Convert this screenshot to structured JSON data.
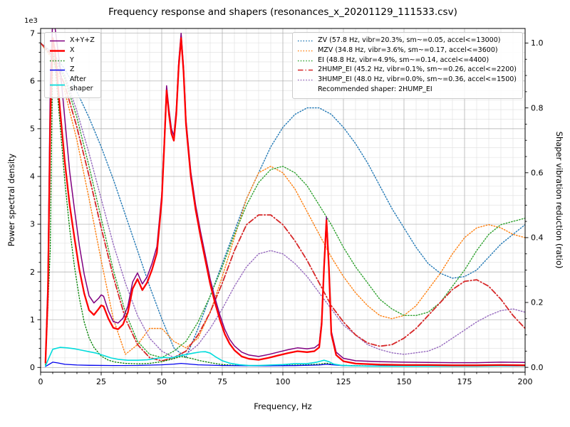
{
  "figure": {
    "title": "Frequency response and shapers (resonances_x_20201129_111533.csv)"
  },
  "chart_data": {
    "type": "line",
    "title": "Frequency response and shapers (resonances_x_20201129_111533.csv)",
    "xlabel": "Frequency, Hz",
    "ylabel_left": "Power spectral density",
    "ylabel_right": "Shaper vibration reduction (ratio)",
    "y_left_offset_label": "1e3",
    "recommended_shaper": "2HUMP_EI",
    "xlim": [
      0,
      200
    ],
    "ylim_left": [
      -100,
      7100
    ],
    "ylim_right": [
      -0.015,
      1.045
    ],
    "x_major_step": 25,
    "x_minor_step": 5,
    "y_left_major_step": 1000,
    "y_left_minor_step": 200,
    "grid": true,
    "x_ticks": [
      0,
      25,
      50,
      75,
      100,
      125,
      150,
      175,
      200
    ],
    "x_tick_labels": [
      "0",
      "25",
      "50",
      "75",
      "100",
      "125",
      "150",
      "175",
      "200"
    ],
    "y_left_ticks": [
      0,
      1000,
      2000,
      3000,
      4000,
      5000,
      6000,
      7000
    ],
    "y_left_tick_labels": [
      "0",
      "1",
      "2",
      "3",
      "4",
      "5",
      "6",
      "7"
    ],
    "y_right_ticks": [
      0,
      0.2,
      0.4,
      0.6,
      0.8,
      1.0
    ],
    "y_right_tick_labels": [
      "0.0",
      "0.2",
      "0.4",
      "0.6",
      "0.8",
      "1.0"
    ],
    "legend_left": {
      "entries": [
        {
          "label": "X+Y+Z",
          "color": "#800080",
          "style": "solid",
          "width": 1.6
        },
        {
          "label": "X",
          "color": "#ff0000",
          "style": "solid",
          "width": 2.4
        },
        {
          "label": "Y",
          "color": "#008000",
          "style": "dotted",
          "width": 1.5
        },
        {
          "label": "Z",
          "color": "#0000ee",
          "style": "solid",
          "width": 1.5
        },
        {
          "label": "After\nshaper",
          "color": "#00dcdc",
          "style": "solid",
          "width": 1.7
        }
      ]
    },
    "legend_right": {
      "entries": [
        {
          "label": "ZV (57.8 Hz, vibr=20.3%, sm~=0.05, accel<=13000)",
          "color": "#1f77b4",
          "style": "dotted",
          "width": 1.5
        },
        {
          "label": "MZV (34.8 Hz, vibr=3.6%, sm~=0.17, accel<=3600)",
          "color": "#ff7f0e",
          "style": "dotted",
          "width": 1.5
        },
        {
          "label": "EI (48.8 Hz, vibr=4.9%, sm~=0.14, accel<=4400)",
          "color": "#2ca02c",
          "style": "dotted",
          "width": 1.5
        },
        {
          "label": "2HUMP_EI (45.2 Hz, vibr=0.1%, sm~=0.26, accel<=2200)",
          "color": "#d62728",
          "style": "dashdot",
          "width": 1.6
        },
        {
          "label": "3HUMP_EI (48.0 Hz, vibr=0.0%, sm~=0.36, accel<=1500)",
          "color": "#9467bd",
          "style": "dotted",
          "width": 1.5
        }
      ],
      "note": "Recommended shaper: 2HUMP_EI"
    },
    "series": [
      {
        "name": "ZV",
        "axis": "right",
        "color": "#1f77b4",
        "style": "dotted",
        "width": 1.4,
        "x": [
          0,
          5,
          10,
          15,
          20,
          25,
          30,
          35,
          40,
          45,
          50,
          55,
          60,
          65,
          70,
          75,
          80,
          85,
          90,
          95,
          100,
          105,
          110,
          115,
          120,
          125,
          130,
          135,
          140,
          145,
          150,
          155,
          160,
          165,
          170,
          175,
          180,
          185,
          190,
          195,
          200
        ],
        "y": [
          1.0,
          0.97,
          0.92,
          0.85,
          0.77,
          0.68,
          0.58,
          0.47,
          0.36,
          0.25,
          0.15,
          0.06,
          0.03,
          0.12,
          0.22,
          0.32,
          0.42,
          0.52,
          0.6,
          0.68,
          0.74,
          0.78,
          0.8,
          0.8,
          0.78,
          0.74,
          0.69,
          0.63,
          0.56,
          0.49,
          0.43,
          0.37,
          0.32,
          0.29,
          0.275,
          0.28,
          0.3,
          0.34,
          0.38,
          0.41,
          0.44
        ]
      },
      {
        "name": "MZV",
        "axis": "right",
        "color": "#ff7f0e",
        "style": "dotted",
        "width": 1.4,
        "x": [
          0,
          5,
          10,
          15,
          20,
          25,
          30,
          35,
          40,
          45,
          50,
          55,
          60,
          65,
          70,
          75,
          80,
          85,
          90,
          95,
          100,
          105,
          110,
          115,
          120,
          125,
          130,
          135,
          140,
          145,
          150,
          155,
          160,
          165,
          170,
          175,
          180,
          185,
          190,
          195,
          200
        ],
        "y": [
          1.0,
          0.95,
          0.85,
          0.7,
          0.52,
          0.33,
          0.15,
          0.04,
          0.07,
          0.12,
          0.12,
          0.08,
          0.06,
          0.09,
          0.17,
          0.28,
          0.4,
          0.52,
          0.6,
          0.62,
          0.6,
          0.55,
          0.48,
          0.41,
          0.34,
          0.28,
          0.23,
          0.19,
          0.16,
          0.15,
          0.16,
          0.19,
          0.24,
          0.29,
          0.35,
          0.4,
          0.43,
          0.44,
          0.43,
          0.41,
          0.4
        ]
      },
      {
        "name": "EI",
        "axis": "right",
        "color": "#2ca02c",
        "style": "dotted",
        "width": 1.4,
        "x": [
          0,
          5,
          10,
          15,
          20,
          25,
          30,
          35,
          40,
          45,
          50,
          55,
          60,
          65,
          70,
          75,
          80,
          85,
          90,
          95,
          100,
          105,
          110,
          115,
          120,
          125,
          130,
          135,
          140,
          145,
          150,
          155,
          160,
          165,
          170,
          175,
          180,
          185,
          190,
          195,
          200
        ],
        "y": [
          1.0,
          0.97,
          0.89,
          0.77,
          0.62,
          0.46,
          0.3,
          0.17,
          0.08,
          0.04,
          0.03,
          0.05,
          0.08,
          0.14,
          0.22,
          0.31,
          0.41,
          0.5,
          0.57,
          0.61,
          0.62,
          0.6,
          0.56,
          0.5,
          0.44,
          0.37,
          0.31,
          0.26,
          0.21,
          0.18,
          0.16,
          0.16,
          0.17,
          0.2,
          0.25,
          0.3,
          0.36,
          0.41,
          0.44,
          0.45,
          0.46
        ]
      },
      {
        "name": "3HUMP_EI",
        "axis": "right",
        "color": "#9467bd",
        "style": "dotted",
        "width": 1.4,
        "x": [
          0,
          5,
          10,
          15,
          20,
          25,
          30,
          35,
          40,
          45,
          50,
          55,
          60,
          65,
          70,
          75,
          80,
          85,
          90,
          95,
          100,
          105,
          110,
          115,
          120,
          125,
          130,
          135,
          140,
          145,
          150,
          155,
          160,
          165,
          170,
          175,
          180,
          185,
          190,
          195,
          200
        ],
        "y": [
          1.0,
          0.97,
          0.9,
          0.79,
          0.66,
          0.52,
          0.38,
          0.26,
          0.16,
          0.09,
          0.05,
          0.03,
          0.04,
          0.07,
          0.12,
          0.18,
          0.25,
          0.31,
          0.35,
          0.36,
          0.35,
          0.32,
          0.28,
          0.23,
          0.18,
          0.13,
          0.1,
          0.07,
          0.055,
          0.045,
          0.04,
          0.045,
          0.05,
          0.065,
          0.09,
          0.115,
          0.14,
          0.16,
          0.175,
          0.18,
          0.17
        ]
      },
      {
        "name": "2HUMP_EI",
        "axis": "right",
        "color": "#d62728",
        "style": "dashdot",
        "width": 1.8,
        "x": [
          0,
          5,
          10,
          15,
          20,
          25,
          30,
          35,
          40,
          45,
          50,
          55,
          60,
          65,
          70,
          75,
          80,
          85,
          90,
          95,
          100,
          105,
          110,
          115,
          120,
          125,
          130,
          135,
          140,
          145,
          150,
          155,
          160,
          165,
          170,
          175,
          180,
          185,
          190,
          195,
          200
        ],
        "y": [
          1.0,
          0.96,
          0.87,
          0.74,
          0.59,
          0.43,
          0.28,
          0.15,
          0.07,
          0.03,
          0.02,
          0.03,
          0.05,
          0.1,
          0.17,
          0.26,
          0.36,
          0.44,
          0.47,
          0.47,
          0.44,
          0.39,
          0.33,
          0.26,
          0.19,
          0.14,
          0.1,
          0.075,
          0.065,
          0.07,
          0.09,
          0.12,
          0.16,
          0.2,
          0.24,
          0.265,
          0.27,
          0.25,
          0.21,
          0.16,
          0.12
        ]
      },
      {
        "name": "Y",
        "axis": "left",
        "color": "#008000",
        "style": "dotted",
        "width": 1.3,
        "x": [
          2,
          4,
          5,
          6,
          8,
          10,
          12,
          14,
          16,
          18,
          20,
          22,
          25,
          28,
          31,
          35,
          40,
          45,
          50,
          54,
          58,
          62,
          66,
          70,
          75,
          80,
          90,
          100,
          110,
          115,
          118,
          122,
          130,
          140,
          160,
          180,
          200
        ],
        "y": [
          50,
          2500,
          6600,
          6300,
          5100,
          3900,
          2900,
          2100,
          1450,
          950,
          620,
          420,
          240,
          150,
          110,
          85,
          75,
          85,
          120,
          170,
          230,
          190,
          140,
          100,
          60,
          45,
          35,
          45,
          55,
          70,
          90,
          50,
          35,
          30,
          30,
          30,
          30
        ]
      },
      {
        "name": "Z",
        "axis": "left",
        "color": "#0000ee",
        "style": "solid",
        "width": 1.3,
        "x": [
          2,
          4,
          5,
          7,
          10,
          15,
          20,
          30,
          40,
          50,
          55,
          58,
          65,
          75,
          90,
          105,
          115,
          118,
          125,
          140,
          160,
          180,
          200
        ],
        "y": [
          20,
          80,
          110,
          95,
          65,
          50,
          45,
          40,
          42,
          55,
          70,
          85,
          55,
          40,
          32,
          38,
          50,
          65,
          35,
          30,
          28,
          28,
          30
        ]
      },
      {
        "name": "After shaper",
        "axis": "left",
        "color": "#00dcdc",
        "style": "solid",
        "width": 1.6,
        "x": [
          2,
          3,
          5,
          8,
          11,
          14,
          17,
          20,
          23,
          26,
          29,
          32,
          36,
          40,
          44,
          48,
          51,
          54,
          57,
          60,
          63,
          66,
          68,
          70,
          72,
          75,
          78,
          82,
          86,
          90,
          95,
          100,
          105,
          110,
          114,
          117,
          119,
          121,
          124,
          128,
          135,
          145,
          160,
          180,
          195,
          200
        ],
        "y": [
          30,
          150,
          380,
          420,
          410,
          390,
          360,
          330,
          300,
          250,
          200,
          170,
          150,
          150,
          160,
          190,
          210,
          200,
          240,
          270,
          300,
          325,
          330,
          300,
          230,
          140,
          90,
          55,
          40,
          40,
          50,
          60,
          80,
          80,
          110,
          150,
          120,
          70,
          45,
          35,
          28,
          25,
          25,
          25,
          35,
          30
        ]
      },
      {
        "name": "X+Y+Z",
        "axis": "left",
        "color": "#800080",
        "style": "solid",
        "width": 1.5,
        "x": [
          2,
          3,
          4,
          5,
          6,
          7,
          8,
          10,
          12,
          14,
          16,
          18,
          20,
          22,
          24,
          25,
          26,
          28,
          30,
          32,
          34,
          36,
          38,
          40,
          42,
          44,
          46,
          48,
          50,
          51,
          52,
          53,
          54,
          55,
          56,
          57,
          58,
          59,
          60,
          62,
          64,
          66,
          68,
          70,
          72,
          74,
          76,
          78,
          80,
          83,
          86,
          90,
          94,
          98,
          102,
          106,
          110,
          113,
          115,
          116,
          117,
          118,
          119,
          120,
          122,
          125,
          130,
          140,
          150,
          160,
          170,
          180,
          190,
          200
        ],
        "y": [
          150,
          1800,
          6000,
          7300,
          7100,
          6700,
          6300,
          5200,
          4100,
          3300,
          2550,
          1950,
          1500,
          1350,
          1450,
          1520,
          1490,
          1180,
          960,
          930,
          1030,
          1280,
          1790,
          1980,
          1750,
          1900,
          2180,
          2530,
          3620,
          4720,
          5900,
          5400,
          5000,
          4850,
          5400,
          6400,
          7000,
          6300,
          5200,
          4100,
          3400,
          2850,
          2350,
          1850,
          1450,
          1100,
          800,
          590,
          450,
          320,
          260,
          230,
          270,
          320,
          370,
          410,
          390,
          410,
          490,
          970,
          2160,
          3150,
          2170,
          760,
          320,
          190,
          140,
          120,
          110,
          105,
          100,
          100,
          110,
          105
        ]
      },
      {
        "name": "X",
        "axis": "left",
        "color": "#ff0000",
        "style": "solid",
        "width": 2.3,
        "x": [
          2,
          3,
          4,
          5,
          6,
          7,
          8,
          10,
          12,
          14,
          16,
          18,
          20,
          22,
          24,
          25,
          26,
          28,
          30,
          32,
          34,
          36,
          38,
          40,
          42,
          44,
          46,
          48,
          50,
          51,
          52,
          53,
          54,
          55,
          56,
          57,
          58,
          59,
          60,
          62,
          64,
          66,
          68,
          70,
          72,
          74,
          76,
          78,
          80,
          83,
          86,
          90,
          94,
          98,
          102,
          106,
          110,
          113,
          115,
          116,
          117,
          118,
          119,
          120,
          122,
          125,
          130,
          140,
          150,
          160,
          170,
          180,
          190,
          200
        ],
        "y": [
          100,
          1500,
          5200,
          6900,
          6600,
          6000,
          5400,
          4300,
          3400,
          2700,
          2050,
          1550,
          1200,
          1100,
          1230,
          1300,
          1280,
          1020,
          830,
          800,
          900,
          1150,
          1650,
          1850,
          1620,
          1780,
          2050,
          2400,
          3500,
          4600,
          5800,
          5300,
          4900,
          4750,
          5300,
          6300,
          6900,
          6200,
          5100,
          4000,
          3300,
          2750,
          2250,
          1750,
          1350,
          1000,
          700,
          500,
          360,
          230,
          180,
          160,
          200,
          250,
          300,
          340,
          320,
          340,
          420,
          900,
          2100,
          3080,
          2100,
          700,
          260,
          130,
          80,
          60,
          50,
          50,
          45,
          45,
          50,
          45
        ]
      }
    ]
  }
}
